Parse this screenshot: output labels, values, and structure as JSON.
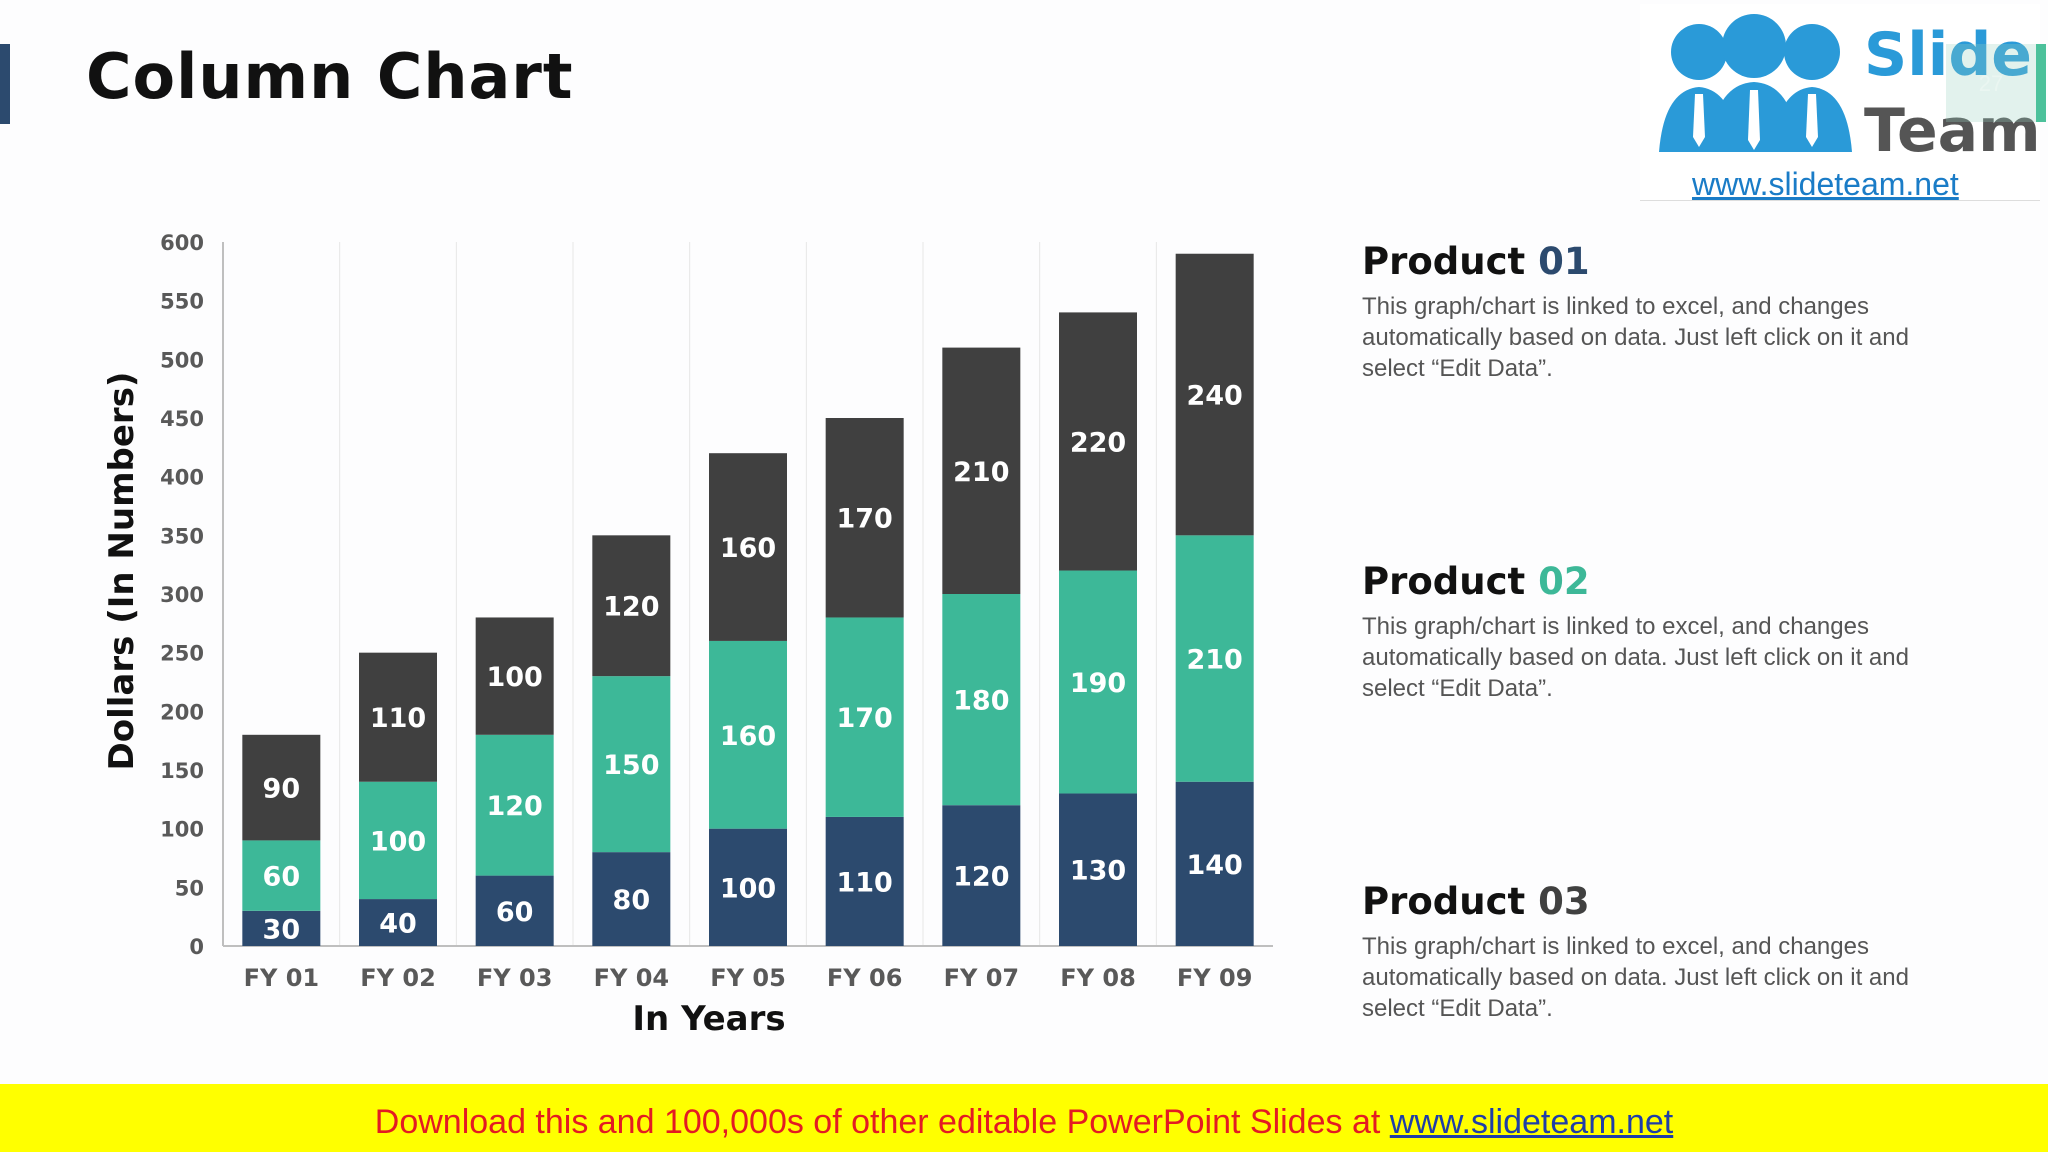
{
  "title": "Column Chart",
  "logo": {
    "word1": "Slide",
    "word2": "Team",
    "url": "www.slideteam.net"
  },
  "page_number": "27",
  "products": [
    {
      "name": "Product",
      "num": "01",
      "color": "#2c4a6e",
      "desc": "This graph/chart is linked to excel, and changes automatically based on data. Just left click on it and select “Edit Data”."
    },
    {
      "name": "Product",
      "num": "02",
      "color": "#3db898",
      "desc": "This graph/chart is linked to excel, and changes automatically based on data. Just left click on it and select “Edit Data”."
    },
    {
      "name": "Product",
      "num": "03",
      "color": "#404040",
      "desc": "This graph/chart is linked to excel, and changes automatically based on data. Just left click on it and select “Edit Data”."
    }
  ],
  "banner": {
    "text": "Download this and 100,000s of other editable PowerPoint Slides at ",
    "link": "www.slideteam.net"
  },
  "chart_data": {
    "type": "bar",
    "stacked": true,
    "title": "Column Chart",
    "xlabel": "In Years",
    "ylabel": "Dollars (In Numbers)",
    "categories": [
      "FY 01",
      "FY 02",
      "FY 03",
      "FY 04",
      "FY 05",
      "FY 06",
      "FY 07",
      "FY 08",
      "FY 09"
    ],
    "ylim": [
      0,
      600
    ],
    "yticks": [
      0,
      50,
      100,
      150,
      200,
      250,
      300,
      350,
      400,
      450,
      500,
      550,
      600
    ],
    "grid": true,
    "series": [
      {
        "name": "Product 01",
        "color": "#2c4a6e",
        "values": [
          30,
          40,
          60,
          80,
          100,
          110,
          120,
          130,
          140
        ]
      },
      {
        "name": "Product 02",
        "color": "#3db898",
        "values": [
          60,
          100,
          120,
          150,
          160,
          170,
          180,
          190,
          210
        ]
      },
      {
        "name": "Product 03",
        "color": "#404040",
        "values": [
          90,
          110,
          100,
          120,
          160,
          170,
          210,
          220,
          240
        ]
      }
    ]
  }
}
